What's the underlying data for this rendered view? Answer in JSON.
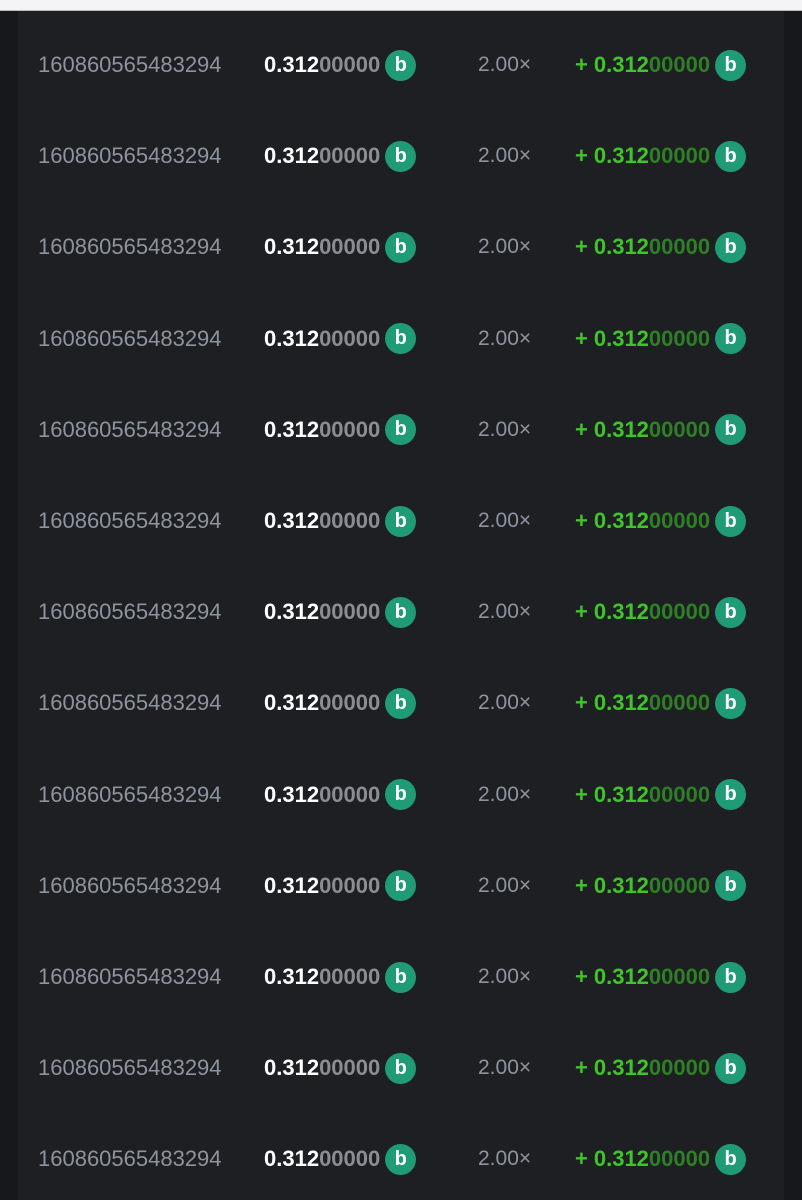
{
  "rows": [
    {
      "id": "160860565483294",
      "bet_main": "0.312",
      "bet_rest": "00000",
      "multiplier": "2.00×",
      "payout_sign": "+",
      "payout_main": "0.312",
      "payout_rest": "00000"
    },
    {
      "id": "160860565483294",
      "bet_main": "0.312",
      "bet_rest": "00000",
      "multiplier": "2.00×",
      "payout_sign": "+",
      "payout_main": "0.312",
      "payout_rest": "00000"
    },
    {
      "id": "160860565483294",
      "bet_main": "0.312",
      "bet_rest": "00000",
      "multiplier": "2.00×",
      "payout_sign": "+",
      "payout_main": "0.312",
      "payout_rest": "00000"
    },
    {
      "id": "160860565483294",
      "bet_main": "0.312",
      "bet_rest": "00000",
      "multiplier": "2.00×",
      "payout_sign": "+",
      "payout_main": "0.312",
      "payout_rest": "00000"
    },
    {
      "id": "160860565483294",
      "bet_main": "0.312",
      "bet_rest": "00000",
      "multiplier": "2.00×",
      "payout_sign": "+",
      "payout_main": "0.312",
      "payout_rest": "00000"
    },
    {
      "id": "160860565483294",
      "bet_main": "0.312",
      "bet_rest": "00000",
      "multiplier": "2.00×",
      "payout_sign": "+",
      "payout_main": "0.312",
      "payout_rest": "00000"
    },
    {
      "id": "160860565483294",
      "bet_main": "0.312",
      "bet_rest": "00000",
      "multiplier": "2.00×",
      "payout_sign": "+",
      "payout_main": "0.312",
      "payout_rest": "00000"
    },
    {
      "id": "160860565483294",
      "bet_main": "0.312",
      "bet_rest": "00000",
      "multiplier": "2.00×",
      "payout_sign": "+",
      "payout_main": "0.312",
      "payout_rest": "00000"
    },
    {
      "id": "160860565483294",
      "bet_main": "0.312",
      "bet_rest": "00000",
      "multiplier": "2.00×",
      "payout_sign": "+",
      "payout_main": "0.312",
      "payout_rest": "00000"
    },
    {
      "id": "160860565483294",
      "bet_main": "0.312",
      "bet_rest": "00000",
      "multiplier": "2.00×",
      "payout_sign": "+",
      "payout_main": "0.312",
      "payout_rest": "00000"
    },
    {
      "id": "160860565483294",
      "bet_main": "0.312",
      "bet_rest": "00000",
      "multiplier": "2.00×",
      "payout_sign": "+",
      "payout_main": "0.312",
      "payout_rest": "00000"
    },
    {
      "id": "160860565483294",
      "bet_main": "0.312",
      "bet_rest": "00000",
      "multiplier": "2.00×",
      "payout_sign": "+",
      "payout_main": "0.312",
      "payout_rest": "00000"
    },
    {
      "id": "160860565483294",
      "bet_main": "0.312",
      "bet_rest": "00000",
      "multiplier": "2.00×",
      "payout_sign": "+",
      "payout_main": "0.312",
      "payout_rest": "00000"
    }
  ],
  "coin_icon": {
    "name": "bcd-coin-icon",
    "glyph": "b",
    "color": "#1f9c76"
  },
  "colors": {
    "win": "#3fc529",
    "background": "#1e1f23"
  }
}
